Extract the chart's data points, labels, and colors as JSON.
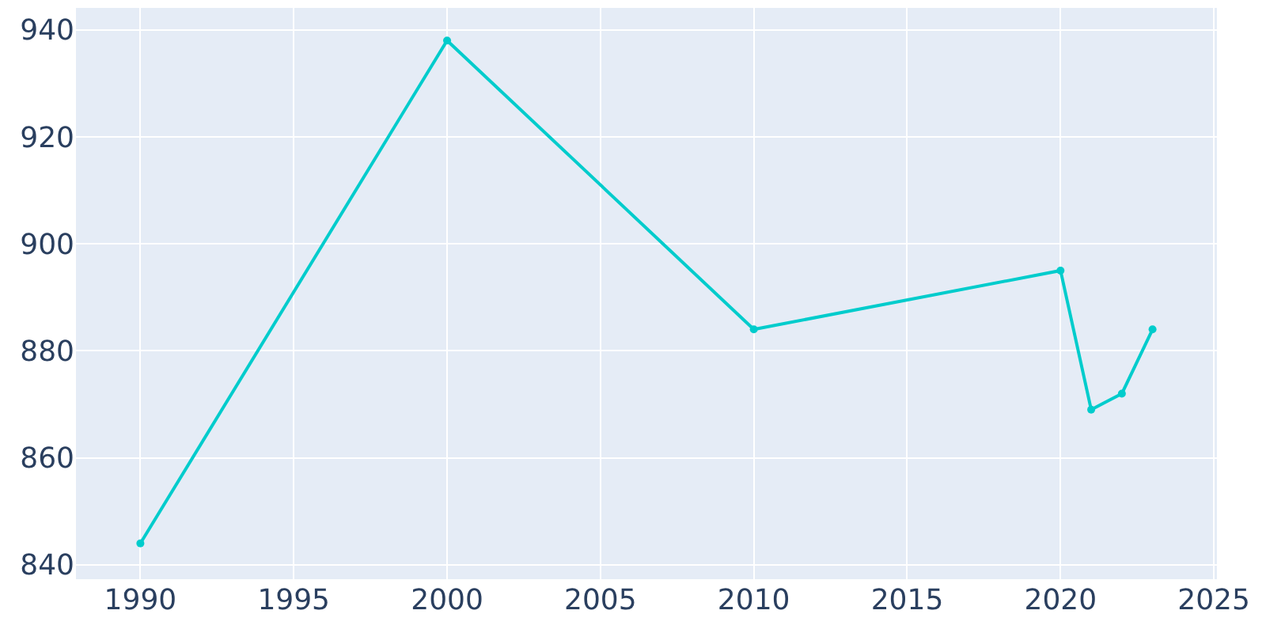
{
  "chart_data": {
    "type": "line",
    "x": [
      1990,
      2000,
      2010,
      2020,
      2021,
      2022,
      2023
    ],
    "series": [
      {
        "color": "#00cccc",
        "values": [
          844,
          938,
          884,
          895,
          869,
          872,
          884
        ]
      }
    ],
    "xlim": [
      1987.9,
      2025.1
    ],
    "xticks": [
      1990,
      1995,
      2000,
      2005,
      2010,
      2015,
      2020,
      2025
    ],
    "ylim": [
      837.3,
      944.1
    ],
    "yticks": [
      840,
      860,
      880,
      900,
      920,
      940
    ],
    "grid": true,
    "marker": "circle",
    "line_style": "solid"
  }
}
